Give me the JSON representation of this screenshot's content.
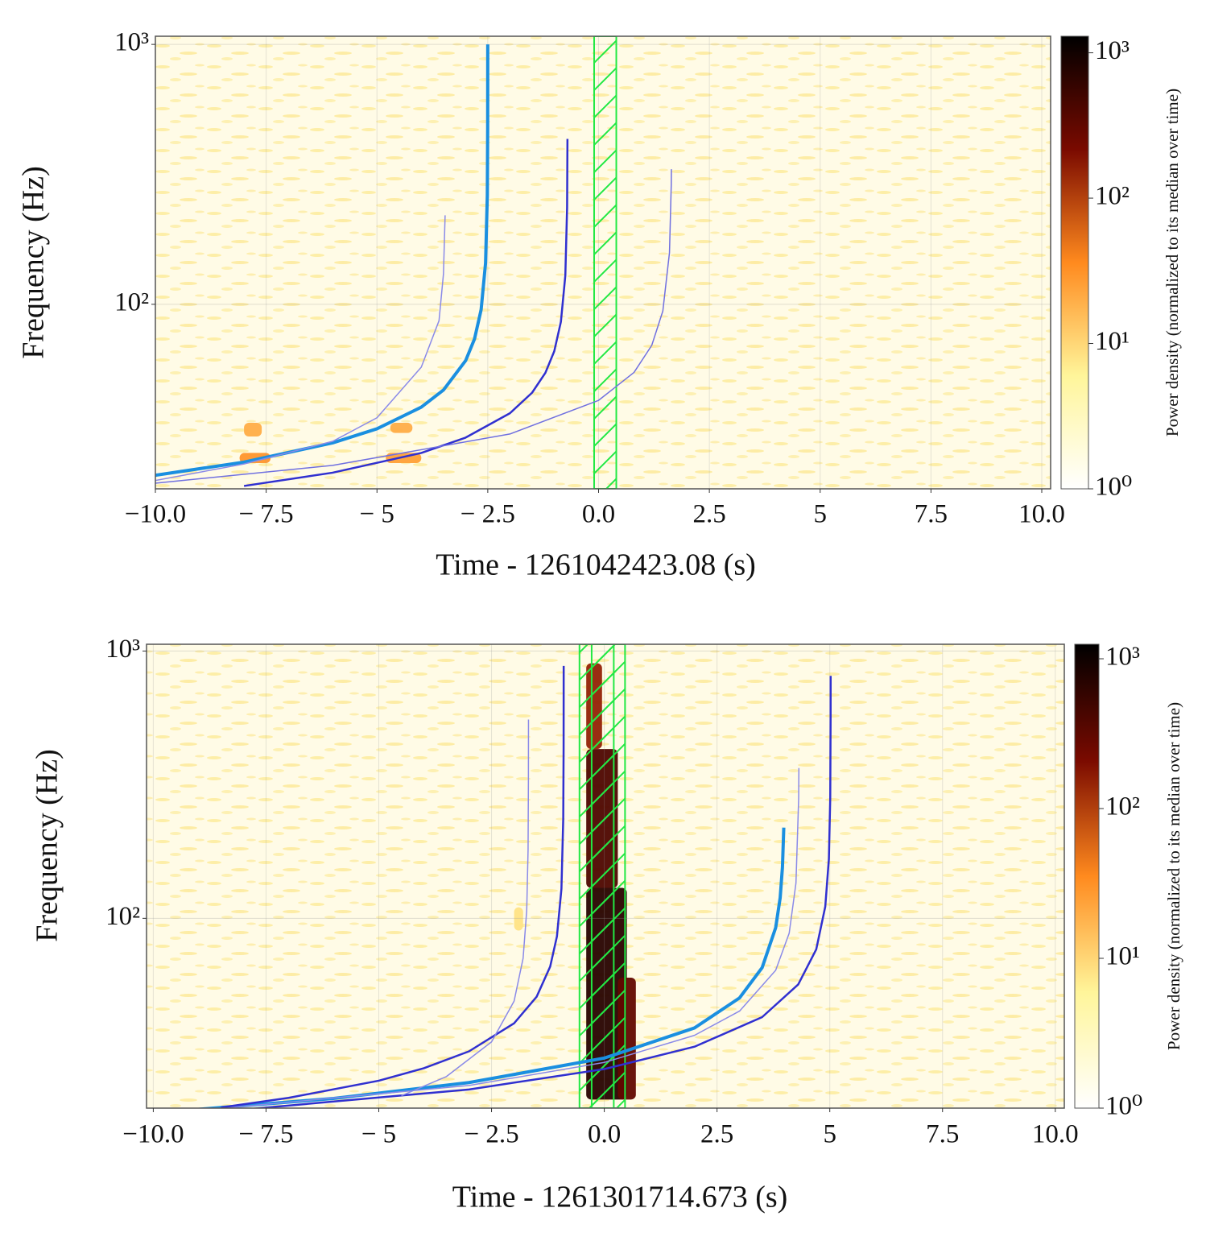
{
  "chart_data": [
    {
      "type": "spectrogram",
      "xlabel": "Time - 1261042423.08 (s)",
      "ylabel": "Frequency (Hz)",
      "colorbar_label": "Power density (normalized to its median over time)",
      "xlim": [
        -10,
        10.2
      ],
      "ylim": [
        19.5,
        1075
      ],
      "yscale": "log",
      "grid": true,
      "xticks": [
        {
          "value": -10,
          "label": "−10.0"
        },
        {
          "value": -7.5,
          "label": "− 7.5"
        },
        {
          "value": -5,
          "label": "− 5"
        },
        {
          "value": -2.5,
          "label": "− 2.5"
        },
        {
          "value": 0,
          "label": "0.0"
        },
        2.5,
        5,
        7.5,
        {
          "value": 10,
          "label": "10.0"
        }
      ],
      "yticks": [
        {
          "value": 100,
          "label": "10²"
        },
        {
          "value": 1000,
          "label": "10³"
        }
      ],
      "clim": [
        1,
        1300
      ],
      "cticks": [
        {
          "value": 1,
          "label": "10⁰"
        },
        {
          "value": 10,
          "label": "10¹"
        },
        {
          "value": 100,
          "label": "10²"
        },
        {
          "value": 1000,
          "label": "10³"
        }
      ],
      "colormap": [
        "#ffffff",
        "#fff59a",
        "#ff8a1e",
        "#7a0a00",
        "#000000"
      ],
      "band_color": "#22e844",
      "bands": [
        [
          -0.1,
          0.4
        ]
      ],
      "power_regions": [
        {
          "x": [
            -8.1,
            -7.4
          ],
          "y": [
            24.5,
            26.8
          ],
          "value": 30
        },
        {
          "x": [
            -8.0,
            -7.6
          ],
          "y": [
            31,
            35
          ],
          "value": 20
        },
        {
          "x": [
            -4.8,
            -4.0
          ],
          "y": [
            24.5,
            26.8
          ],
          "value": 25
        },
        {
          "x": [
            -4.7,
            -4.2
          ],
          "y": [
            32,
            35
          ],
          "value": 20
        }
      ],
      "series": [
        {
          "color": "#1a8fe0",
          "width": 4,
          "x": [
            -10,
            -8,
            -6,
            -5,
            -4,
            -3.5,
            -3,
            -2.8,
            -2.65,
            -2.55,
            -2.51,
            -2.502,
            -2.5003
          ],
          "values": [
            22,
            24.7,
            29.3,
            33.2,
            40.2,
            46.8,
            60.7,
            73.5,
            95.3,
            143.9,
            263,
            482,
            1000
          ]
        },
        {
          "color": "#8a8ae8",
          "width": 1.5,
          "x": [
            -10,
            -8,
            -6,
            -5,
            -4,
            -3.6,
            -3.5,
            -3.4625
          ],
          "values": [
            21,
            24.3,
            29.7,
            36.6,
            57.3,
            86.5,
            130.7,
            220
          ]
        },
        {
          "color": "#3030d0",
          "width": 2.5,
          "x": [
            -8,
            -6,
            -4,
            -3,
            -2,
            -1.5,
            -1.2,
            -1,
            -0.85,
            -0.75,
            -0.71,
            -0.702
          ],
          "values": [
            20,
            22.5,
            26.8,
            30.7,
            38.1,
            45.7,
            54.5,
            66,
            85.6,
            129,
            236,
            433
          ]
        },
        {
          "color": "#7070e0",
          "width": 1.5,
          "x": [
            -10,
            -6,
            -2,
            0,
            0.8,
            1.2,
            1.45,
            1.6,
            1.64,
            1.643
          ],
          "values": [
            20.5,
            24,
            31.7,
            42.7,
            54.7,
            69.5,
            94.2,
            158,
            289,
            331
          ]
        }
      ]
    },
    {
      "type": "spectrogram",
      "xlabel": "Time - 1261301714.673 (s)",
      "ylabel": "Frequency (Hz)",
      "colorbar_label": "Power density (normalized to its median over time)",
      "xlim": [
        -10.15,
        10.2
      ],
      "ylim": [
        19.5,
        1060
      ],
      "yscale": "log",
      "grid": true,
      "xticks": [
        {
          "value": -10,
          "label": "−10.0"
        },
        {
          "value": -7.5,
          "label": "− 7.5"
        },
        {
          "value": -5,
          "label": "− 5"
        },
        {
          "value": -2.5,
          "label": "− 2.5"
        },
        {
          "value": 0,
          "label": "0.0"
        },
        2.5,
        5,
        7.5,
        {
          "value": 10,
          "label": "10.0"
        }
      ],
      "yticks": [
        {
          "value": 100,
          "label": "10²"
        },
        {
          "value": 1000,
          "label": "10³"
        }
      ],
      "clim": [
        1,
        1250
      ],
      "cticks": [
        {
          "value": 1,
          "label": "10⁰"
        },
        {
          "value": 10,
          "label": "10¹"
        },
        {
          "value": 100,
          "label": "10²"
        },
        {
          "value": 1000,
          "label": "10³"
        }
      ],
      "colormap": [
        "#ffffff",
        "#fff59a",
        "#ff8a1e",
        "#7a0a00",
        "#000000"
      ],
      "band_color": "#22e844",
      "bands": [
        [
          -0.55,
          0.21
        ],
        [
          -0.28,
          0.46
        ]
      ],
      "power_regions": [
        {
          "x": [
            -0.4,
            0.5
          ],
          "y": [
            21,
            130
          ],
          "value": 700
        },
        {
          "x": [
            -0.4,
            0.3
          ],
          "y": [
            130,
            430
          ],
          "value": 400
        },
        {
          "x": [
            -0.4,
            -0.05
          ],
          "y": [
            430,
            900
          ],
          "value": 150
        },
        {
          "x": [
            0.3,
            0.7
          ],
          "y": [
            21,
            60
          ],
          "value": 300
        },
        {
          "x": [
            -2.0,
            -1.8
          ],
          "y": [
            90,
            110
          ],
          "value": 8
        }
      ],
      "series": [
        {
          "color": "#1a8fe0",
          "width": 4,
          "x": [
            -9,
            -6,
            -3,
            0,
            2,
            3,
            3.5,
            3.8,
            3.9,
            3.95,
            3.98
          ],
          "values": [
            19.3,
            21.2,
            24.3,
            30,
            38.9,
            50.4,
            65.4,
            92.2,
            119.5,
            155,
            218.5
          ]
        },
        {
          "color": "#8a8ae8",
          "width": 1.5,
          "x": [
            -9,
            -3,
            0,
            2,
            3,
            3.8,
            4.1,
            4.25,
            4.31,
            4.315
          ],
          "values": [
            19.1,
            23.7,
            28.9,
            36.5,
            45,
            63.9,
            88,
            135.5,
            281,
            365
          ]
        },
        {
          "color": "#3030d0",
          "width": 2.5,
          "x": [
            -9,
            -3,
            0,
            2,
            3.5,
            4.3,
            4.7,
            4.9,
            4.98,
            5.01,
            5.0185,
            5.0194
          ],
          "values": [
            18.6,
            22.9,
            27.3,
            33.1,
            42.7,
            56.6,
            76.6,
            110.7,
            167,
            281,
            572,
            807
          ]
        },
        {
          "color": "#3030d0",
          "width": 2.5,
          "x": [
            -8.5,
            -7,
            -5,
            -4,
            -3,
            -2,
            -1.5,
            -1.2,
            -1.05,
            -0.95,
            -0.91,
            -0.902,
            -0.9003
          ],
          "values": [
            19.6,
            21.3,
            24.7,
            27.5,
            31.8,
            40.5,
            50.9,
            66,
            85.6,
            129,
            236,
            433,
            880
          ]
        },
        {
          "color": "#8a8ae8",
          "width": 1.5,
          "x": [
            -4.5,
            -3.5,
            -2.5,
            -2,
            -1.8,
            -1.72,
            -1.69,
            -1.682,
            -1.6805
          ],
          "values": [
            21.7,
            25.6,
            34.5,
            49,
            70.9,
            107,
            180,
            330,
            554
          ]
        }
      ]
    }
  ]
}
